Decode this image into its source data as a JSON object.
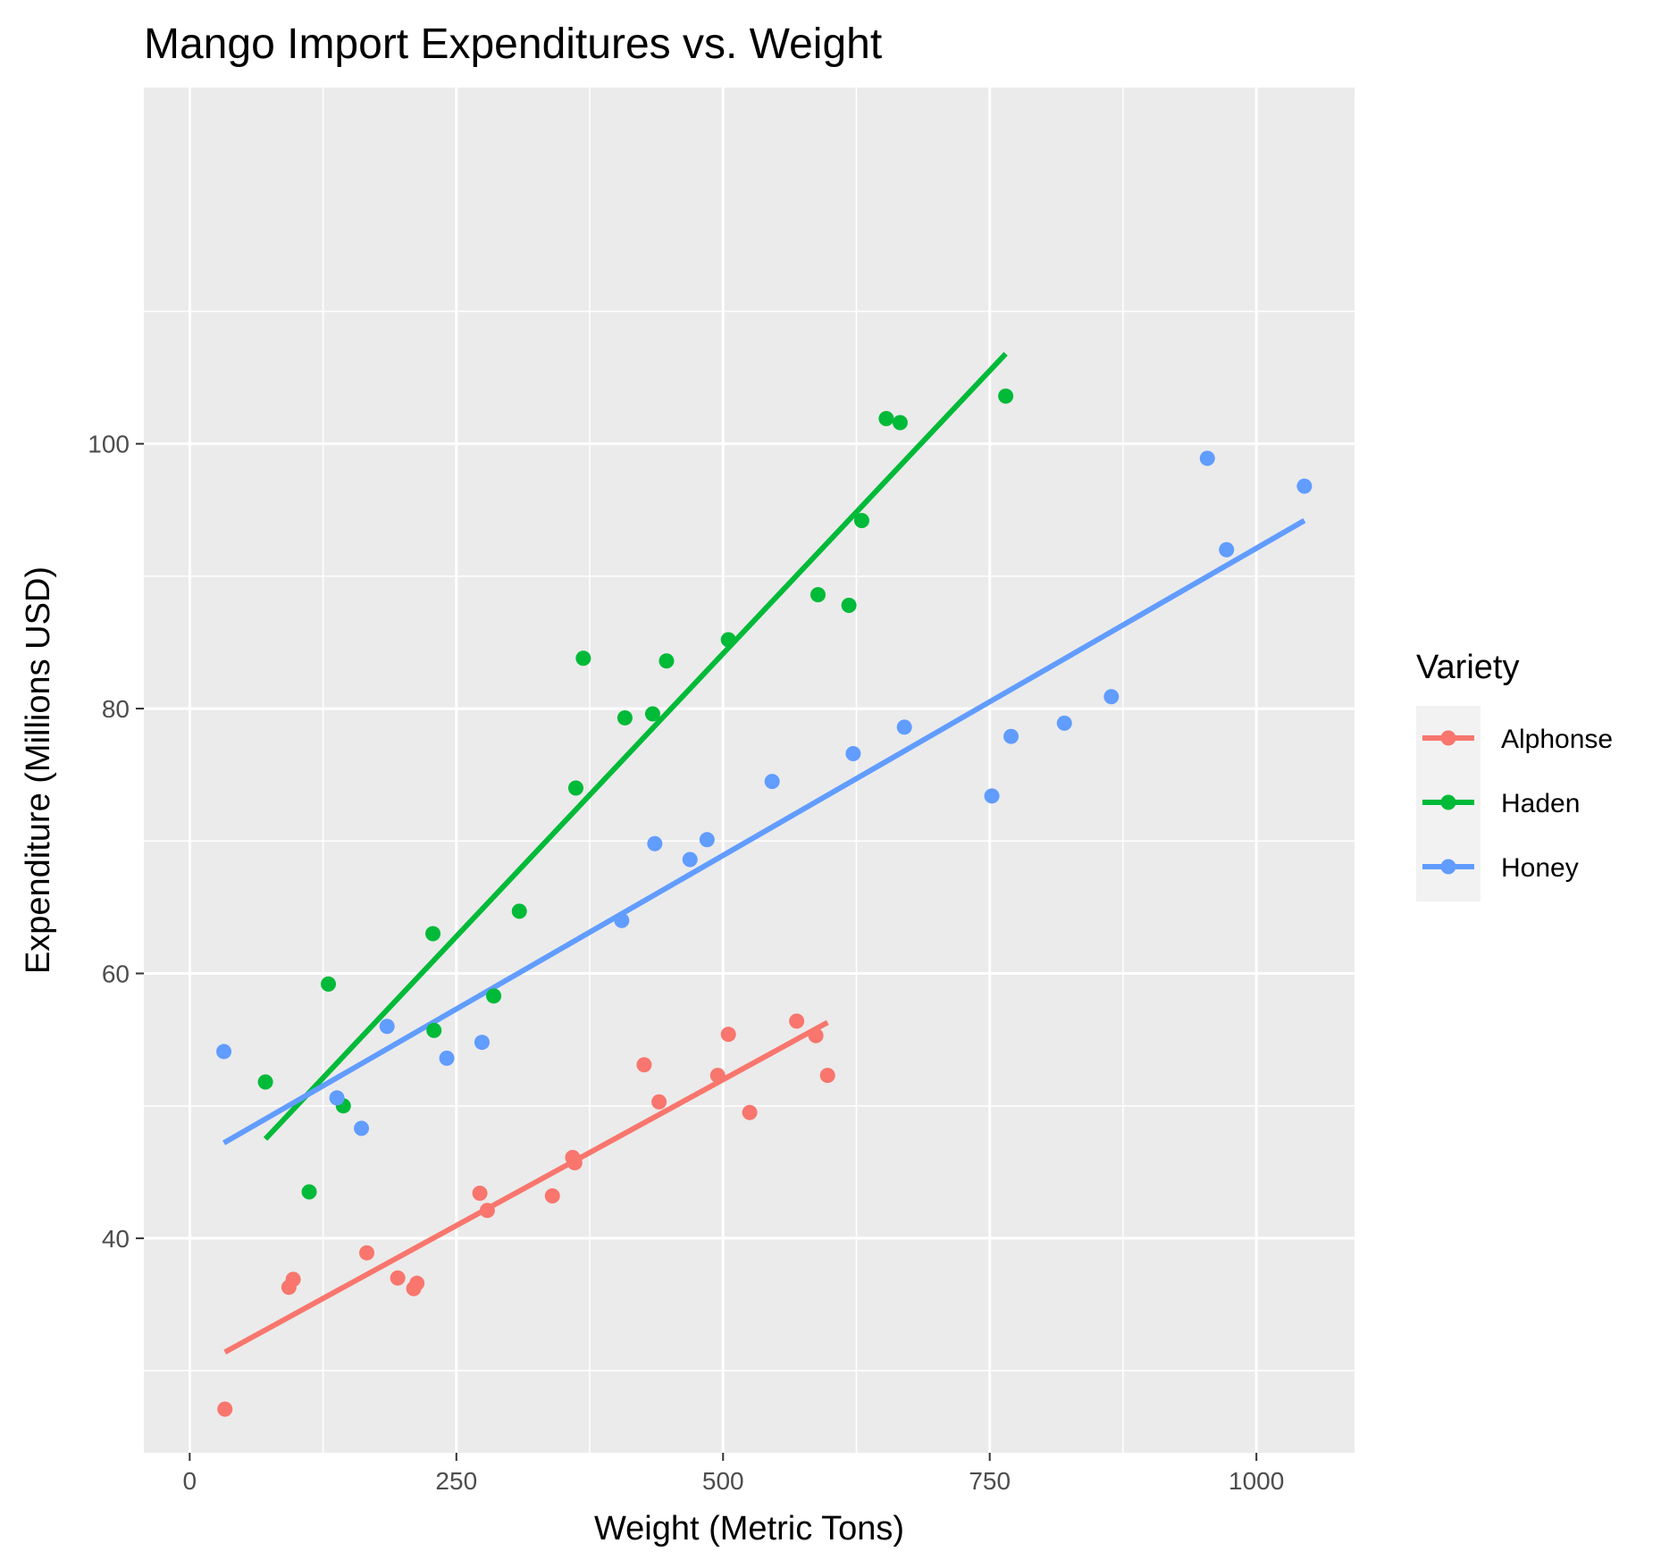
{
  "chart_data": {
    "type": "scatter",
    "title": "Mango Import Expenditures vs. Weight",
    "xlabel": "Weight (Metric Tons)",
    "ylabel": "Expenditure (Millions USD)",
    "xlim": [
      -43,
      1092
    ],
    "ylim": [
      23.8,
      126.9
    ],
    "x_ticks": [
      0,
      250,
      500,
      750,
      1000
    ],
    "x_tick_labels": [
      "0",
      "250",
      "500",
      "750",
      "1000"
    ],
    "y_ticks": [
      40,
      60,
      80,
      100
    ],
    "y_tick_labels": [
      "40",
      "60",
      "80",
      "100"
    ],
    "grid": true,
    "legend_title": "Variety",
    "legend_position": "right",
    "series": [
      {
        "name": "Alphonse",
        "color": "#F8766D",
        "points": [
          [
            33,
            27.1
          ],
          [
            93,
            36.3
          ],
          [
            97,
            36.9
          ],
          [
            166,
            38.9
          ],
          [
            195,
            37.0
          ],
          [
            210,
            36.2
          ],
          [
            213,
            36.6
          ],
          [
            272,
            43.4
          ],
          [
            279,
            42.1
          ],
          [
            340,
            43.2
          ],
          [
            359,
            46.1
          ],
          [
            361,
            45.7
          ],
          [
            426,
            53.1
          ],
          [
            440,
            50.3
          ],
          [
            495,
            52.3
          ],
          [
            505,
            55.4
          ],
          [
            525,
            49.5
          ],
          [
            569,
            56.4
          ],
          [
            587,
            55.3
          ],
          [
            598,
            52.3
          ]
        ],
        "fit": [
          [
            33,
            31.4
          ],
          [
            598,
            56.3
          ]
        ]
      },
      {
        "name": "Haden",
        "color": "#00BA38",
        "points": [
          [
            71,
            51.8
          ],
          [
            112,
            43.5
          ],
          [
            130,
            59.2
          ],
          [
            144,
            50.0
          ],
          [
            228,
            63.0
          ],
          [
            229,
            55.7
          ],
          [
            285,
            58.3
          ],
          [
            309,
            64.7
          ],
          [
            362,
            74.0
          ],
          [
            369,
            83.8
          ],
          [
            408,
            79.3
          ],
          [
            434,
            79.6
          ],
          [
            447,
            83.6
          ],
          [
            505,
            85.2
          ],
          [
            589,
            88.6
          ],
          [
            618,
            87.8
          ],
          [
            630,
            94.2
          ],
          [
            653,
            101.9
          ],
          [
            666,
            101.6
          ],
          [
            765,
            103.6
          ]
        ],
        "fit": [
          [
            71,
            47.5
          ],
          [
            765,
            106.8
          ]
        ]
      },
      {
        "name": "Honey",
        "color": "#619CFF",
        "points": [
          [
            32,
            54.1
          ],
          [
            138,
            50.6
          ],
          [
            161,
            48.3
          ],
          [
            185,
            56.0
          ],
          [
            241,
            53.6
          ],
          [
            274,
            54.8
          ],
          [
            405,
            64.0
          ],
          [
            436,
            69.8
          ],
          [
            469,
            68.6
          ],
          [
            485,
            70.1
          ],
          [
            546,
            74.5
          ],
          [
            622,
            76.6
          ],
          [
            670,
            78.6
          ],
          [
            752,
            73.4
          ],
          [
            770,
            77.9
          ],
          [
            820,
            78.9
          ],
          [
            864,
            80.9
          ],
          [
            954,
            98.9
          ],
          [
            972,
            92.0
          ],
          [
            1045,
            96.8
          ]
        ],
        "fit": [
          [
            32,
            47.2
          ],
          [
            1045,
            94.2
          ]
        ]
      }
    ]
  }
}
